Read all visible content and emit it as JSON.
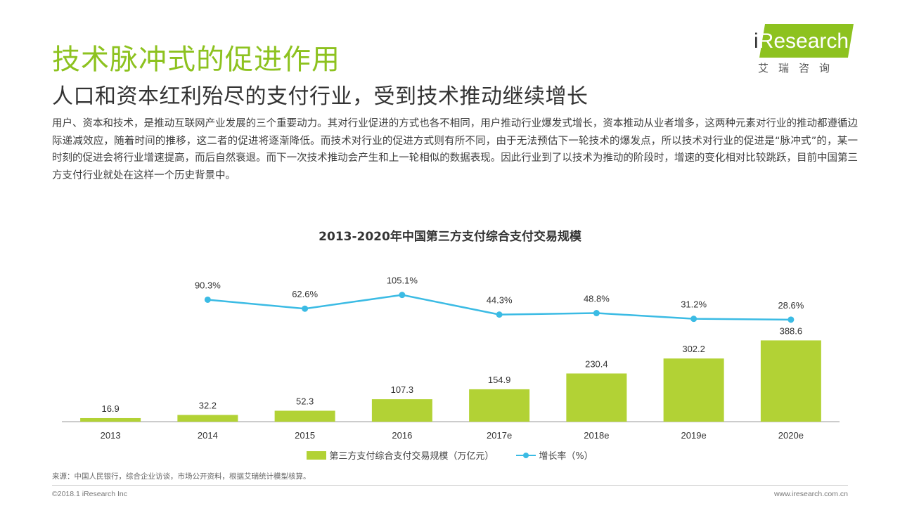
{
  "header": {
    "title": "技术脉冲式的促进作用",
    "subtitle": "人口和资本红利殆尽的支付行业，受到技术推动继续增长"
  },
  "logo": {
    "brand_i": "i",
    "brand_rest": "Research",
    "cn": "艾瑞咨询"
  },
  "intro": "用户、资本和技术，是推动互联网产业发展的三个重要动力。其对行业促进的方式也各不相同，用户推动行业爆发式增长，资本推动从业者增多，这两种元素对行业的推动都遵循边际递减效应，随着时间的推移，这二者的促进将逐渐降低。而技术对行业的促进方式则有所不同，由于无法预估下一轮技术的爆发点，所以技术对行业的促进是“脉冲式”的，某一时刻的促进会将行业增速提高，而后自然衰退。而下一次技术推动会产生和上一轮相似的数据表现。因此行业到了以技术为推动的阶段时，增速的变化相对比较跳跃，目前中国第三方支付行业就处在这样一个历史背景中。",
  "chart_data": {
    "type": "bar",
    "title": "2013-2020年中国第三方支付综合支付交易规模",
    "categories": [
      "2013",
      "2014",
      "2015",
      "2016",
      "2017e",
      "2018e",
      "2019e",
      "2020e"
    ],
    "series": [
      {
        "name": "第三方支付综合支付交易规模（万亿元）",
        "type": "bar",
        "values": [
          16.9,
          32.2,
          52.3,
          107.3,
          154.9,
          230.4,
          302.2,
          388.6
        ],
        "color": "#b2d235"
      },
      {
        "name": "增长率（%）",
        "type": "line",
        "values": [
          null,
          90.3,
          62.6,
          105.1,
          44.3,
          48.8,
          31.2,
          28.6
        ],
        "labels": [
          "",
          "90.3%",
          "62.6%",
          "105.1%",
          "44.3%",
          "48.8%",
          "31.2%",
          "28.6%"
        ],
        "color": "#3bbbe4"
      }
    ],
    "legend_position": "bottom",
    "grid": false
  },
  "footer": {
    "source": "来源：中国人民银行，综合企业访谈，市场公开资料，根据艾瑞统计模型核算。",
    "copyright": "©2018.1 iResearch Inc",
    "website": "www.iresearch.com.cn"
  }
}
